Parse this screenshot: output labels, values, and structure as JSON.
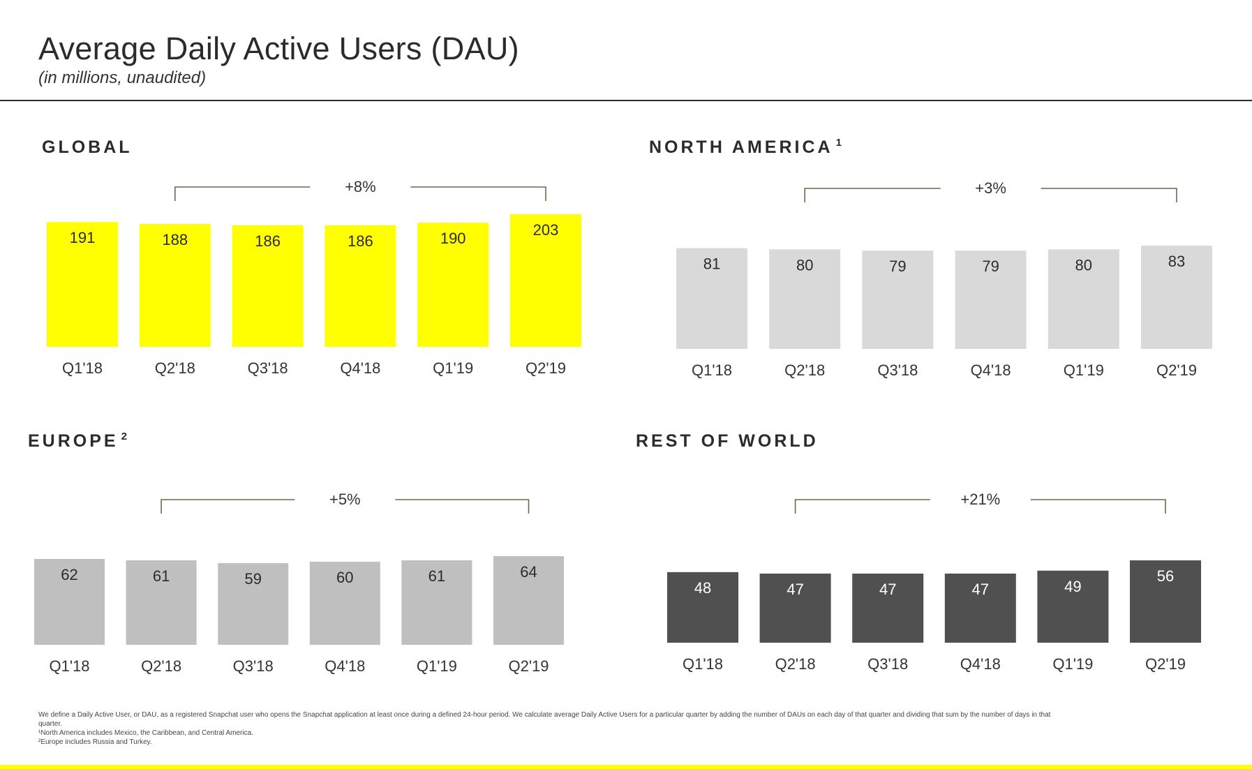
{
  "header": {
    "title": "Average Daily Active Users (DAU)",
    "subtitle": "(in millions, unaudited)"
  },
  "colors": {
    "global": "#ffff00",
    "north_america": "#d9d9d9",
    "europe": "#bfbfbf",
    "rest_of_world": "#505050",
    "bracket": "#6b6a48",
    "bottom_bar": "#ffff00"
  },
  "chart_data": [
    {
      "type": "bar",
      "title": "GLOBAL",
      "categories": [
        "Q1'18",
        "Q2'18",
        "Q3'18",
        "Q4'18",
        "Q1'19",
        "Q2'19"
      ],
      "values": [
        191,
        188,
        186,
        186,
        190,
        203
      ],
      "growth_label": "+8%",
      "growth_from": "Q2'18",
      "growth_to": "Q2'19"
    },
    {
      "type": "bar",
      "title": "NORTH AMERICA",
      "title_sup": "1",
      "categories": [
        "Q1'18",
        "Q2'18",
        "Q3'18",
        "Q4'18",
        "Q1'19",
        "Q2'19"
      ],
      "values": [
        81,
        80,
        79,
        79,
        80,
        83
      ],
      "growth_label": "+3%",
      "growth_from": "Q2'18",
      "growth_to": "Q2'19"
    },
    {
      "type": "bar",
      "title": "EUROPE",
      "title_sup": "2",
      "categories": [
        "Q1'18",
        "Q2'18",
        "Q3'18",
        "Q4'18",
        "Q1'19",
        "Q2'19"
      ],
      "values": [
        62,
        61,
        59,
        60,
        61,
        64
      ],
      "growth_label": "+5%",
      "growth_from": "Q2'18",
      "growth_to": "Q2'19"
    },
    {
      "type": "bar",
      "title": "REST OF WORLD",
      "categories": [
        "Q1'18",
        "Q2'18",
        "Q3'18",
        "Q4'18",
        "Q1'19",
        "Q2'19"
      ],
      "values": [
        48,
        47,
        47,
        47,
        49,
        56
      ],
      "growth_label": "+21%",
      "growth_from": "Q2'18",
      "growth_to": "Q2'19"
    }
  ],
  "footnotes": [
    "We define a Daily Active User, or DAU, as a registered Snapchat user who opens the Snapchat application at least once during a defined 24-hour period. We calculate average Daily Active Users for a particular quarter by adding the number of DAUs on each day of that quarter and dividing that sum by the number of days in that quarter.",
    "¹North America includes Mexico, the Caribbean, and Central America.",
    "²Europe includes Russia and Turkey."
  ]
}
